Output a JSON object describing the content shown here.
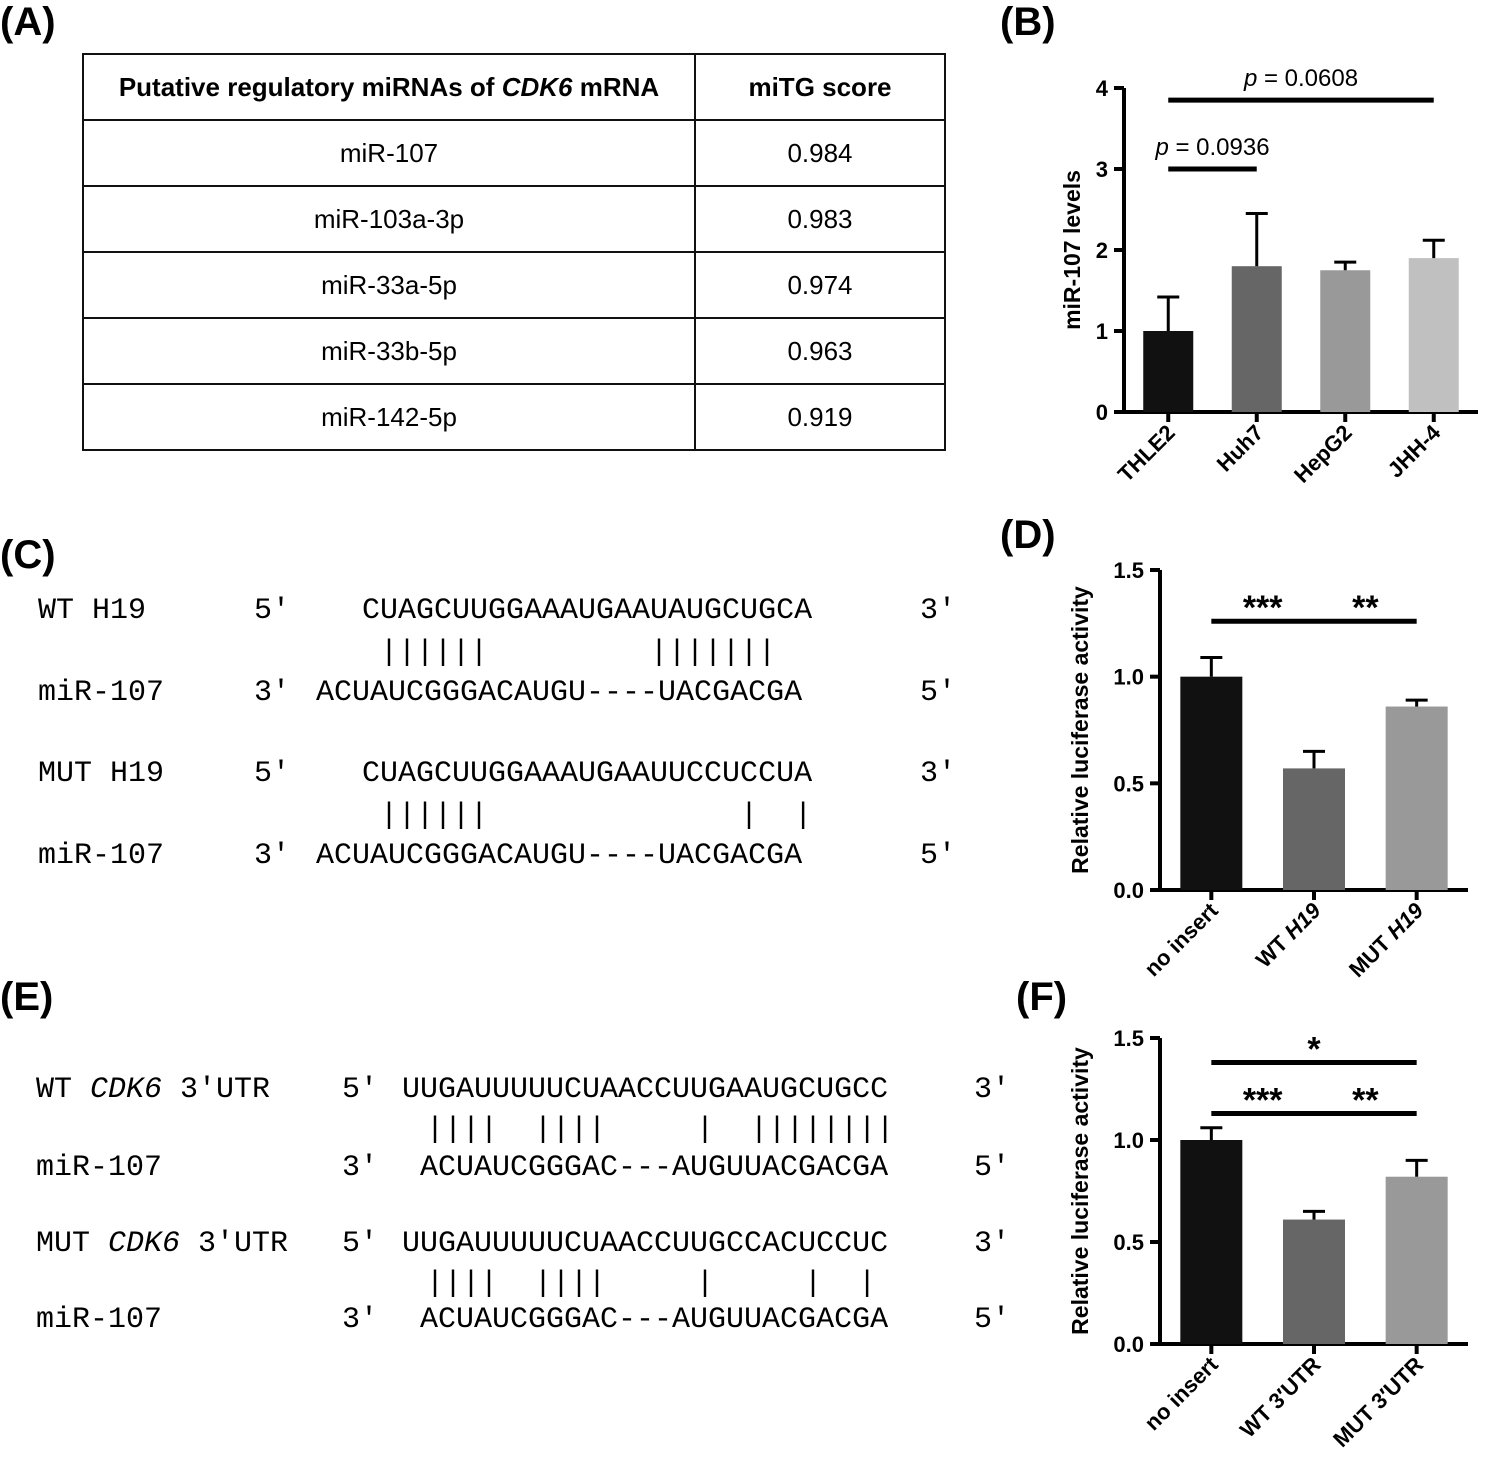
{
  "panel_labels": {
    "a": "(A)",
    "b": "(B)",
    "c": "(C)",
    "d": "(D)",
    "e": "(E)",
    "f": "(F)"
  },
  "table_a": {
    "header_col1_pre": "Putative regulatory miRNAs of ",
    "header_col1_gene": "CDK6",
    "header_col1_post": " mRNA",
    "header_col2": "miTG score",
    "rows": [
      {
        "mirna": "miR-107",
        "score": "0.984"
      },
      {
        "mirna": "miR-103a-3p",
        "score": "0.983"
      },
      {
        "mirna": "miR-33a-5p",
        "score": "0.974"
      },
      {
        "mirna": "miR-33b-5p",
        "score": "0.963"
      },
      {
        "mirna": "miR-142-5p",
        "score": "0.919"
      }
    ]
  },
  "alignment_c": {
    "wt_name": "WT H19",
    "wt_end5": "5′",
    "wt_seq": "CUAGCUUGGAAAUGAAUAUGCUGCA",
    "wt_end3": "3′",
    "wt_pairs": "||||||         |||||||",
    "mir1_name": "miR-107",
    "mir1_end3": "3′",
    "mir1_seq": "ACUAUCGGGACAUGU----UACGACGA",
    "mir1_end5": "5′",
    "mut_name": "MUT H19",
    "mut_end5": "5′",
    "mut_seq": "CUAGCUUGGAAAUGAAUUCCUCCUA",
    "mut_end3": "3′",
    "mut_pairs": "||||||              |  |",
    "mir2_name": "miR-107",
    "mir2_end3": "3′",
    "mir2_seq": "ACUAUCGGGACAUGU----UACGACGA",
    "mir2_end5": "5′"
  },
  "alignment_e": {
    "wt_prefix": "WT ",
    "wt_gene": "CDK6",
    "wt_suffix": " 3′UTR",
    "wt_end5": "5′",
    "wt_seq": "UUGAUUUUUCUAACCUUGAAUGCUGCC",
    "wt_end3": "3′",
    "wt_pairs": "||||  ||||     |  ||||||||",
    "mir1_name": "miR-107",
    "mir1_end3": "3′",
    "mir1_seq": "ACUAUCGGGAC---AUGUUACGACGA",
    "mir1_end5": "5′",
    "mut_prefix": "MUT ",
    "mut_gene": "CDK6",
    "mut_suffix": " 3′UTR",
    "mut_end5": "5′",
    "mut_seq": "UUGAUUUUUCUAACCUUGCCACUCCUC",
    "mut_end3": "3′",
    "mut_pairs": "||||  ||||     |     |  |",
    "mir2_name": "miR-107",
    "mir2_end3": "3′",
    "mir2_seq": "ACUAUCGGGAC---AUGUUACGACGA",
    "mir2_end5": "5′"
  },
  "chart_data": [
    {
      "panel": "B",
      "type": "bar",
      "ylabel": "miR-107 levels",
      "ylim": [
        0,
        4
      ],
      "yticks": [
        "0",
        "1",
        "2",
        "3",
        "4"
      ],
      "categories": [
        "THLE2",
        "Huh7",
        "HepG2",
        "JHH-4"
      ],
      "values": [
        1.0,
        1.8,
        1.75,
        1.9
      ],
      "errors": [
        0.42,
        0.65,
        0.1,
        0.22
      ],
      "colors": [
        "#111111",
        "#666666",
        "#999999",
        "#c0c0c0"
      ],
      "annotations": [
        {
          "from": 0,
          "to": 1,
          "p_label": "p",
          "text": " = 0.0936",
          "level": 3.0
        },
        {
          "from": 0,
          "to": 3,
          "p_label": "p",
          "text": " = 0.0608",
          "level": 3.85
        }
      ]
    },
    {
      "panel": "D",
      "type": "bar",
      "ylabel": "Relative luciferase activity",
      "ylim": [
        0,
        1.5
      ],
      "yticks": [
        "0.0",
        "0.5",
        "1.0",
        "1.5"
      ],
      "categories": [
        {
          "pre": "no insert",
          "it": ""
        },
        {
          "pre": "WT ",
          "it": "H19"
        },
        {
          "pre": "MUT ",
          "it": "H19"
        }
      ],
      "values": [
        1.0,
        0.57,
        0.86
      ],
      "errors": [
        0.09,
        0.08,
        0.03
      ],
      "colors": [
        "#111111",
        "#666666",
        "#999999"
      ],
      "annotations": [
        {
          "from": 0,
          "to": 1,
          "text": "***",
          "level": 1.26
        },
        {
          "from": 1,
          "to": 2,
          "text": "**",
          "level": 1.26
        }
      ]
    },
    {
      "panel": "F",
      "type": "bar",
      "ylabel": "Relative luciferase activity",
      "ylim": [
        0,
        1.5
      ],
      "yticks": [
        "0.0",
        "0.5",
        "1.0",
        "1.5"
      ],
      "categories": [
        {
          "pre": "no insert",
          "it": ""
        },
        {
          "pre": "WT 3′UTR",
          "it": ""
        },
        {
          "pre": "MUT 3′UTR",
          "it": ""
        }
      ],
      "values": [
        1.0,
        0.61,
        0.82
      ],
      "errors": [
        0.06,
        0.04,
        0.08
      ],
      "colors": [
        "#111111",
        "#666666",
        "#999999"
      ],
      "annotations": [
        {
          "from": 0,
          "to": 1,
          "text": "***",
          "level": 1.13
        },
        {
          "from": 1,
          "to": 2,
          "text": "**",
          "level": 1.13
        },
        {
          "from": 0,
          "to": 2,
          "text": "*",
          "level": 1.38
        }
      ]
    }
  ]
}
